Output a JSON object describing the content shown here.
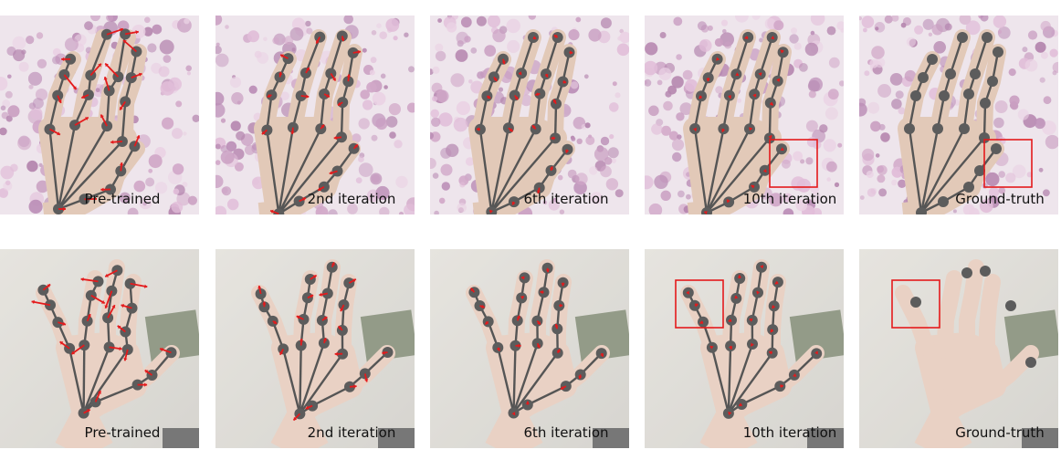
{
  "rows": [
    {
      "scene": "floral",
      "panels": [
        {
          "caption": "Pre-trained"
        },
        {
          "caption": "2nd iteration"
        },
        {
          "caption": "6th iteration"
        },
        {
          "caption": "10th iteration"
        },
        {
          "caption": "Ground-truth"
        }
      ]
    },
    {
      "scene": "plain",
      "panels": [
        {
          "caption": "Pre-trained"
        },
        {
          "caption": "2nd iteration"
        },
        {
          "caption": "6th iteration"
        },
        {
          "caption": "10th iteration"
        },
        {
          "caption": "Ground-truth"
        }
      ]
    }
  ],
  "colors": {
    "skeleton": "#555555",
    "joint": "#5c5c5c",
    "arrow": "#e41a1c",
    "highlight_box": "#e41a1c",
    "caption": "#111111"
  }
}
